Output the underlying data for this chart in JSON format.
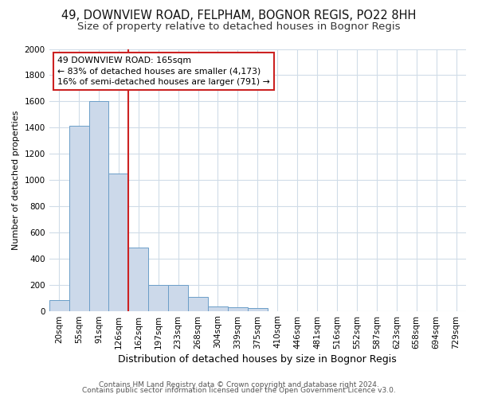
{
  "title1": "49, DOWNVIEW ROAD, FELPHAM, BOGNOR REGIS, PO22 8HH",
  "title2": "Size of property relative to detached houses in Bognor Regis",
  "xlabel": "Distribution of detached houses by size in Bognor Regis",
  "ylabel": "Number of detached properties",
  "categories": [
    "20sqm",
    "55sqm",
    "91sqm",
    "126sqm",
    "162sqm",
    "197sqm",
    "233sqm",
    "268sqm",
    "304sqm",
    "339sqm",
    "375sqm",
    "410sqm",
    "446sqm",
    "481sqm",
    "516sqm",
    "552sqm",
    "587sqm",
    "623sqm",
    "658sqm",
    "694sqm",
    "729sqm"
  ],
  "values": [
    80,
    1415,
    1600,
    1050,
    485,
    200,
    200,
    105,
    35,
    25,
    20,
    0,
    0,
    0,
    0,
    0,
    0,
    0,
    0,
    0,
    0
  ],
  "bar_color": "#ccd9ea",
  "bar_edge_color": "#6b9ec8",
  "vline_color": "#cc2222",
  "vline_x_idx": 4,
  "annotation_line1": "49 DOWNVIEW ROAD: 165sqm",
  "annotation_line2": "← 83% of detached houses are smaller (4,173)",
  "annotation_line3": "16% of semi-detached houses are larger (791) →",
  "annotation_box_facecolor": "#ffffff",
  "annotation_box_edgecolor": "#cc2222",
  "ylim": [
    0,
    2000
  ],
  "yticks": [
    0,
    200,
    400,
    600,
    800,
    1000,
    1200,
    1400,
    1600,
    1800,
    2000
  ],
  "footer1": "Contains HM Land Registry data © Crown copyright and database right 2024.",
  "footer2": "Contains public sector information licensed under the Open Government Licence v3.0.",
  "bg_color": "#ffffff",
  "plot_bg_color": "#ffffff",
  "grid_color": "#d0dce8",
  "title1_fontsize": 10.5,
  "title2_fontsize": 9.5,
  "xlabel_fontsize": 9,
  "ylabel_fontsize": 8,
  "tick_fontsize": 7.5,
  "footer_fontsize": 6.5
}
